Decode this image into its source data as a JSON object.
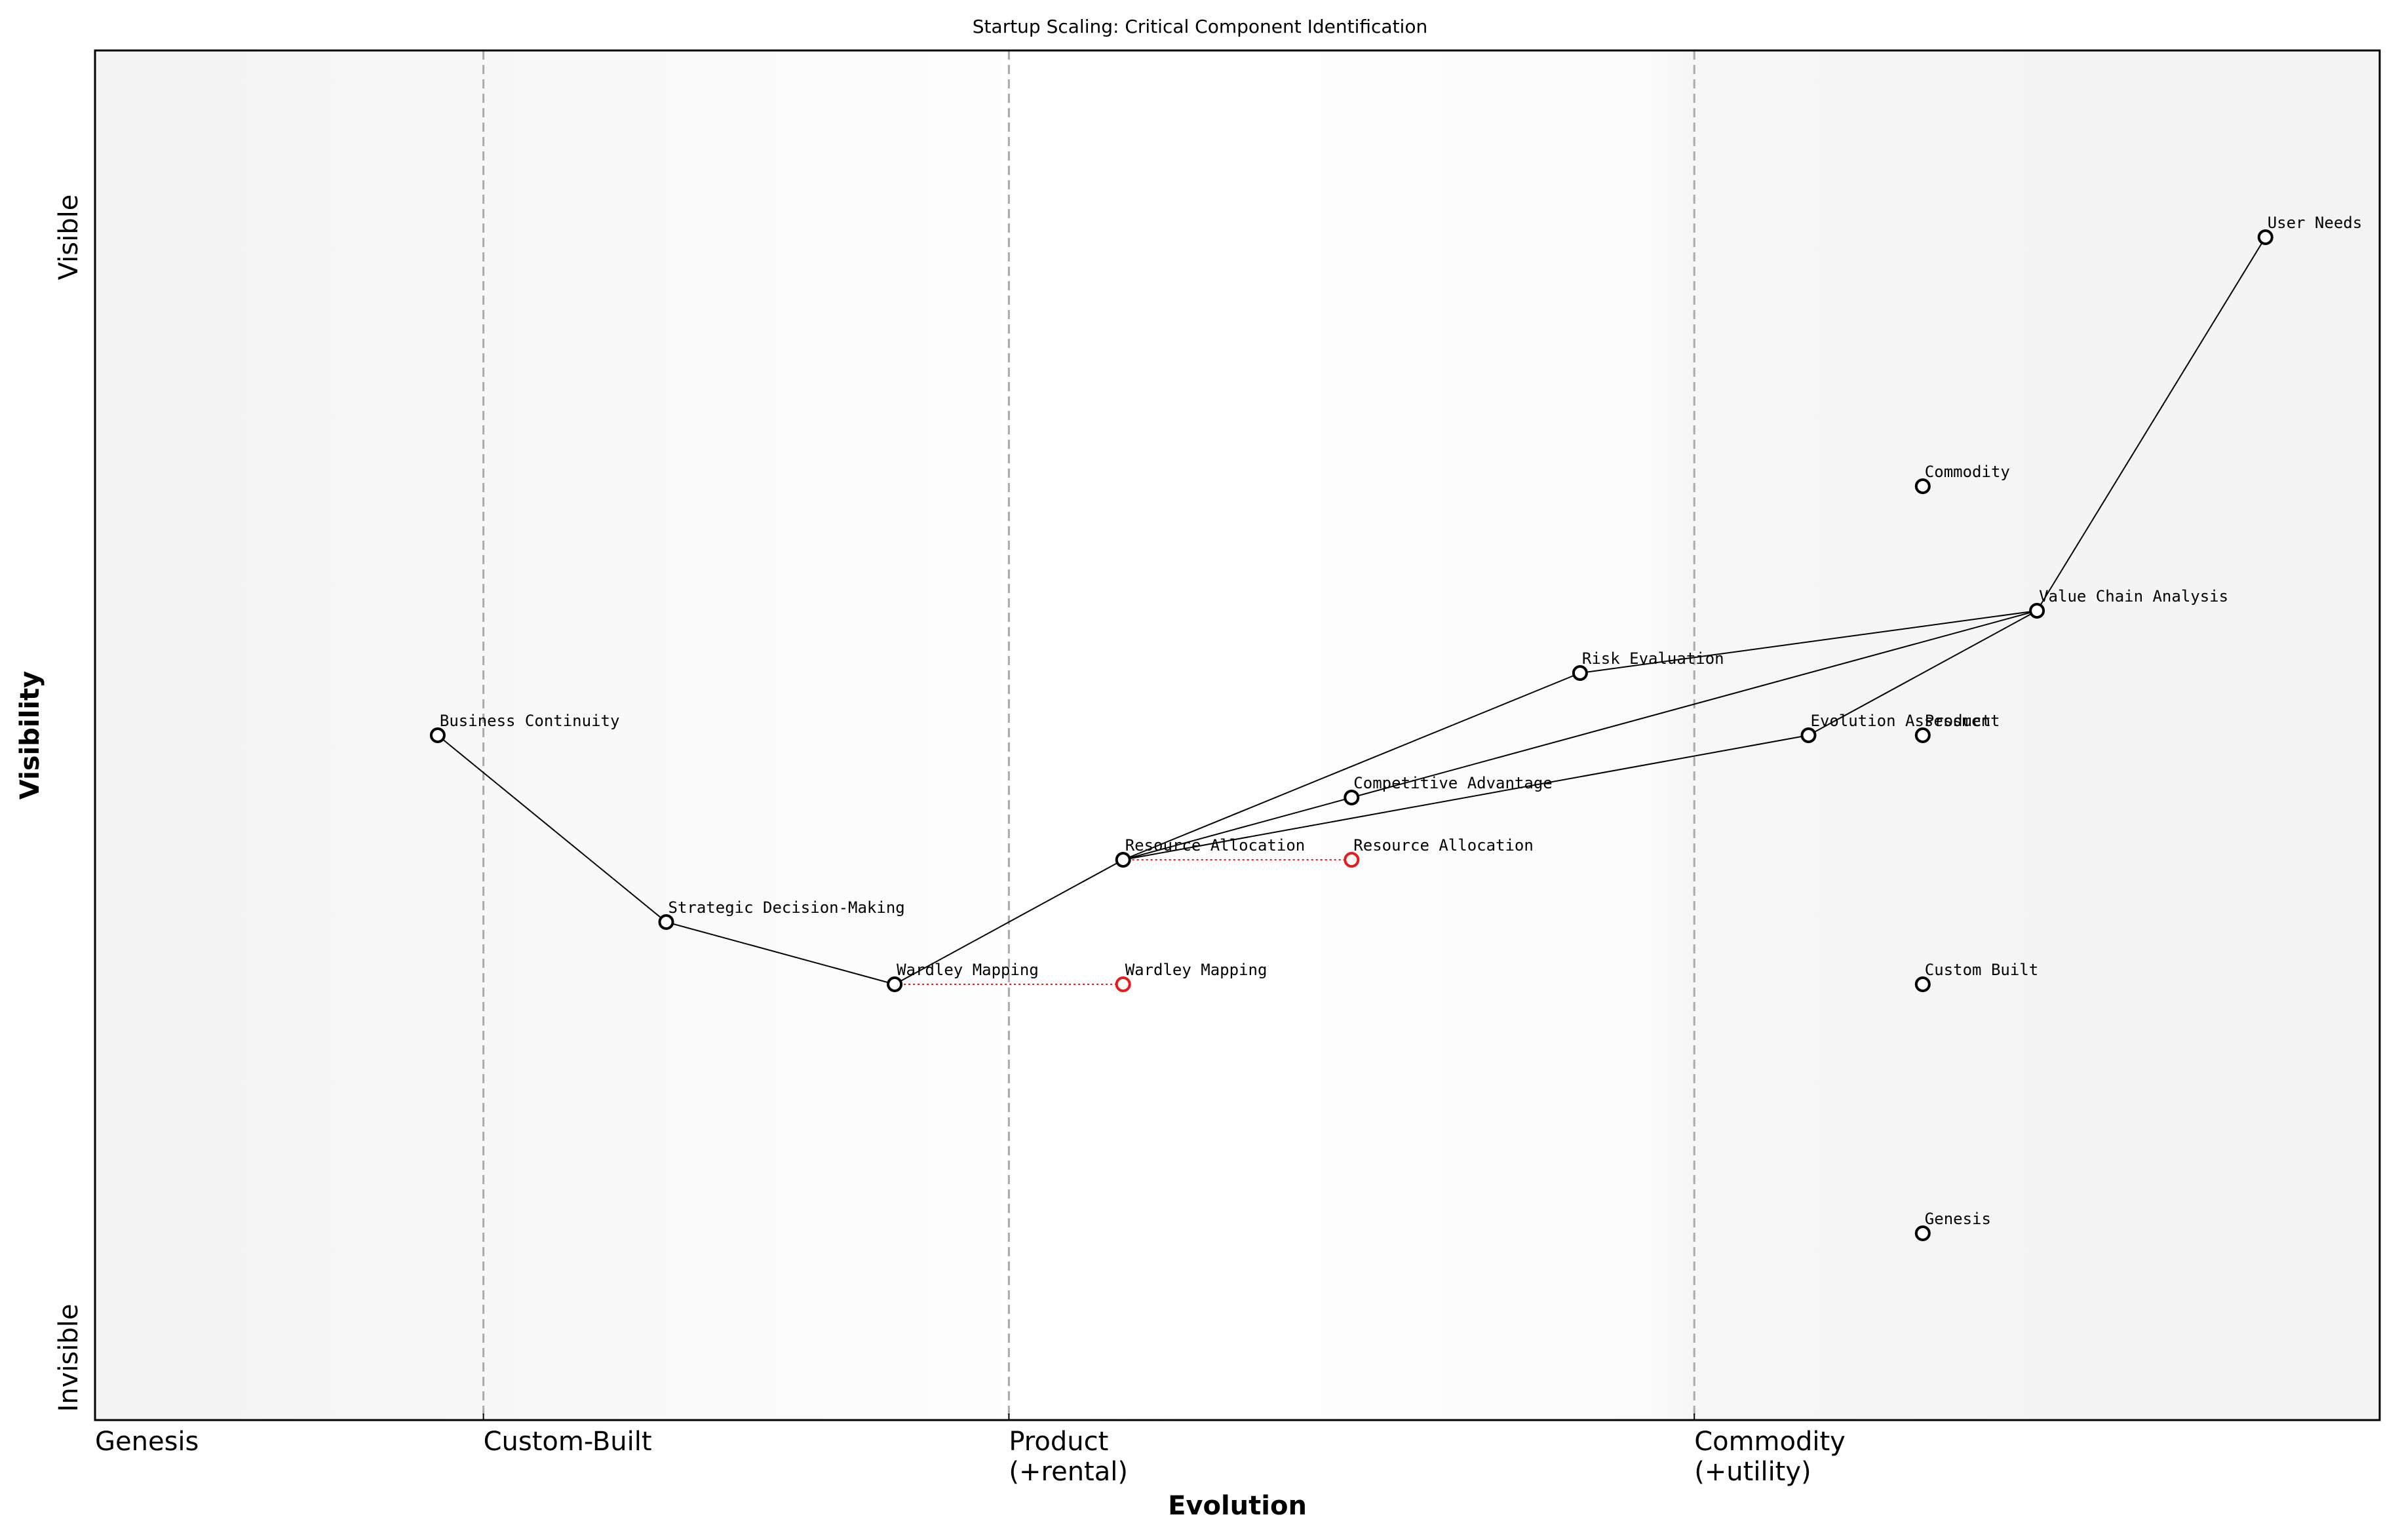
{
  "chart_data": {
    "type": "scatter",
    "title": "Startup Scaling: Critical Component Identification",
    "xlabel": "Evolution",
    "ylabel": "Visibility",
    "xlim": [
      0,
      1
    ],
    "ylim": [
      -0.05,
      1.05
    ],
    "xticks": [
      {
        "value": 0,
        "label": "Genesis"
      },
      {
        "value": 0.17,
        "label": "Custom-Built"
      },
      {
        "value": 0.4,
        "label": "Product\n(+rental)"
      },
      {
        "value": 0.7,
        "label": "Commodity\n(+utility)"
      }
    ],
    "yticks": [
      {
        "value": 0,
        "label": "Invisible"
      },
      {
        "value": 0.9,
        "label": "Visible"
      }
    ],
    "grid": true,
    "color": "#000000",
    "evolve_color": "#e41a1c",
    "nodes": [
      {
        "name": "User Needs",
        "x": 0.95,
        "y": 0.9
      },
      {
        "name": "Commodity",
        "x": 0.8,
        "y": 0.7
      },
      {
        "name": "Value Chain Analysis",
        "x": 0.85,
        "y": 0.6
      },
      {
        "name": "Risk Evaluation",
        "x": 0.65,
        "y": 0.55
      },
      {
        "name": "Business Continuity",
        "x": 0.15,
        "y": 0.5
      },
      {
        "name": "Evolution Assessment",
        "x": 0.75,
        "y": 0.5
      },
      {
        "name": "Product",
        "x": 0.8,
        "y": 0.5
      },
      {
        "name": "Competitive Advantage",
        "x": 0.55,
        "y": 0.45
      },
      {
        "name": "Resource Allocation",
        "x": 0.45,
        "y": 0.4
      },
      {
        "name": "Strategic Decision-Making",
        "x": 0.25,
        "y": 0.35
      },
      {
        "name": "Wardley Mapping",
        "x": 0.35,
        "y": 0.3
      },
      {
        "name": "Custom Built",
        "x": 0.8,
        "y": 0.3
      },
      {
        "name": "Genesis",
        "x": 0.8,
        "y": 0.1
      }
    ],
    "links": [
      [
        0,
        2
      ],
      [
        2,
        3
      ],
      [
        2,
        7
      ],
      [
        2,
        5
      ],
      [
        3,
        8
      ],
      [
        7,
        8
      ],
      [
        5,
        8
      ],
      [
        8,
        10
      ],
      [
        10,
        9
      ],
      [
        9,
        4
      ]
    ],
    "evolutions": [
      {
        "name": "Wardley Mapping",
        "x": 0.45,
        "y": 0.3
      },
      {
        "name": "Resource Allocation",
        "x": 0.55,
        "y": 0.4
      }
    ]
  }
}
